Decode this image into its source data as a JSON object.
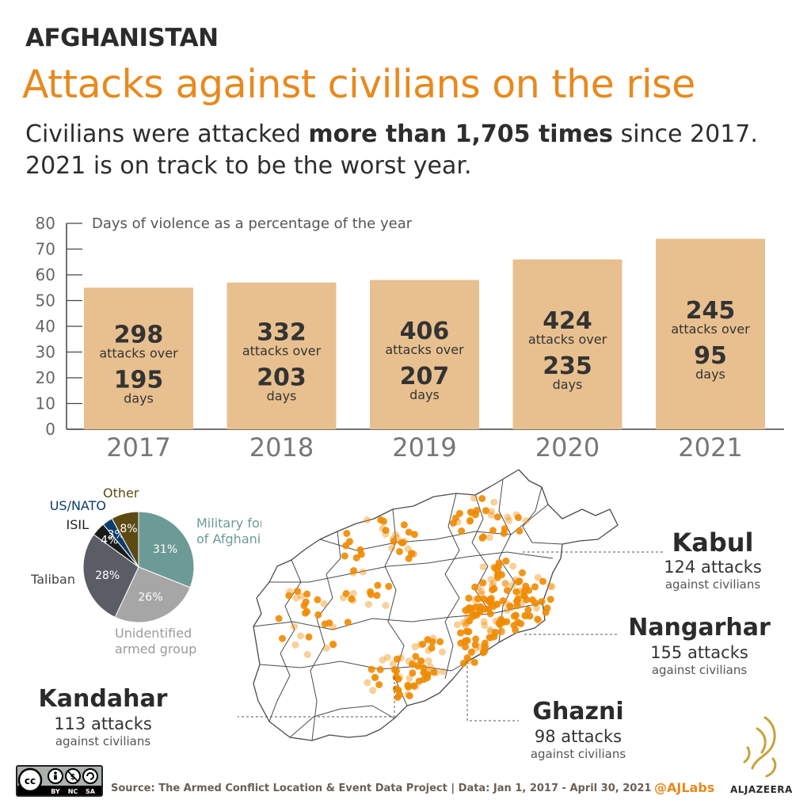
{
  "header": {
    "kicker": "AFGHANISTAN",
    "title": "Attacks against civilians on the rise",
    "subtitle_pre": "Civilians were attacked ",
    "subtitle_bold": "more than 1,705 times",
    "subtitle_post": " since 2017.",
    "subtitle_line2": "2021 is on track to be the worst year."
  },
  "colors": {
    "accent": "#e8891d",
    "bar": "#e8c08f",
    "text_dark": "#333333",
    "teal": "#6c9a96",
    "light_gray": "#a6a6a6",
    "dark_gray": "#5a5d66",
    "black": "#1a1a1a",
    "navy": "#0b3c6e",
    "olive": "#5b4a12",
    "dot": "#f08a00"
  },
  "chart_data": [
    {
      "type": "bar",
      "title": "Days of violence as a percentage of the year",
      "categories": [
        "2017",
        "2018",
        "2019",
        "2020",
        "2021"
      ],
      "values": [
        55,
        57,
        58,
        66,
        74
      ],
      "ylim": [
        0,
        80
      ],
      "yticks": [
        0,
        10,
        20,
        30,
        40,
        50,
        60,
        70,
        80
      ],
      "grid": false,
      "bar_labels": [
        {
          "attacks": "298",
          "attacks_text": "attacks over",
          "days": "195",
          "days_text": "days"
        },
        {
          "attacks": "332",
          "attacks_text": "attacks over",
          "days": "203",
          "days_text": "days"
        },
        {
          "attacks": "406",
          "attacks_text": "attacks over",
          "days": "207",
          "days_text": "days"
        },
        {
          "attacks": "424",
          "attacks_text": "attacks over",
          "days": "235",
          "days_text": "days"
        },
        {
          "attacks": "245",
          "attacks_text": "attacks over",
          "days": "95",
          "days_text": "days"
        }
      ]
    },
    {
      "type": "pie",
      "slices": [
        {
          "label": "Military forces of Afghanistan",
          "label_lines": [
            "Military forces",
            "of Afghanistan"
          ],
          "value": 31,
          "value_label": "31%",
          "color": "#6c9a96"
        },
        {
          "label": "Unidentified armed group",
          "label_lines": [
            "Unidentified",
            "armed group"
          ],
          "value": 26,
          "value_label": "26%",
          "color": "#a6a6a6"
        },
        {
          "label": "Taliban",
          "label_lines": [
            "Taliban"
          ],
          "value": 28,
          "value_label": "28%",
          "color": "#5a5d66"
        },
        {
          "label": "ISIL",
          "label_lines": [
            "ISIL"
          ],
          "value": 4,
          "value_label": "4%",
          "color": "#1a1a1a"
        },
        {
          "label": "US/NATO",
          "label_lines": [
            "US/NATO"
          ],
          "value": 3,
          "value_label": "3%",
          "color": "#0b3c6e"
        },
        {
          "label": "Other",
          "label_lines": [
            "Other"
          ],
          "value": 8,
          "value_label": "8%",
          "color": "#5b4a12"
        }
      ]
    }
  ],
  "map": {
    "callouts": [
      {
        "name": "Kabul",
        "count": "124 attacks",
        "sub": "against civilians"
      },
      {
        "name": "Nangarhar",
        "count": "155 attacks",
        "sub": "against civilians"
      },
      {
        "name": "Ghazni",
        "count": "98 attacks",
        "sub": "against civilians"
      },
      {
        "name": "Kandahar",
        "count": "113 attacks",
        "sub": "against civilians"
      }
    ]
  },
  "footer": {
    "source": "Source: The Armed Conflict Location & Event Data Project | Data: Jan 1, 2017 -  April 30, 2021",
    "handle": "@AJLabs",
    "brand": "ALJAZEERA",
    "license_icons": [
      "creative-commons-icon",
      "attribution-icon",
      "non-commercial-icon",
      "share-alike-icon"
    ],
    "license_labels": [
      "BY",
      "NC",
      "SA"
    ]
  }
}
